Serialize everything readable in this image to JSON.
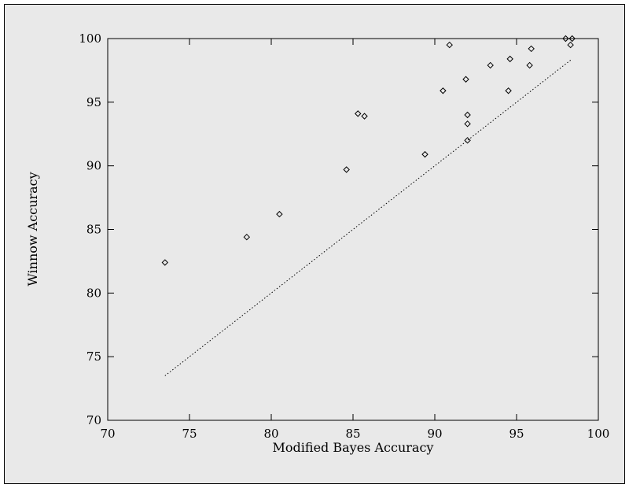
{
  "chart_data": {
    "type": "scatter",
    "xlabel": "Modified Bayes Accuracy",
    "ylabel": "Winnow Accuracy",
    "xlim": [
      70,
      100
    ],
    "ylim": [
      70,
      100
    ],
    "xticks": [
      70,
      75,
      80,
      85,
      90,
      95,
      100
    ],
    "yticks": [
      70,
      75,
      80,
      85,
      90,
      95,
      100
    ],
    "grid": false,
    "legend": "none",
    "colors": {
      "background": "#e9e9e9",
      "marker": "#000000",
      "reference_line": "#000000"
    },
    "series": [
      {
        "marker": "diamond",
        "x": [
          73.5,
          78.5,
          80.5,
          84.6,
          85.3,
          85.7,
          89.4,
          90.5,
          90.9,
          91.9,
          92.0,
          92.0,
          92.0,
          93.4,
          94.5,
          94.6,
          95.8,
          95.9,
          98.0,
          98.3,
          98.4
        ],
        "y": [
          82.4,
          84.4,
          86.2,
          89.7,
          94.1,
          93.9,
          90.9,
          95.9,
          99.5,
          96.8,
          94.0,
          93.3,
          92.0,
          97.9,
          95.9,
          98.4,
          97.9,
          99.2,
          100.0,
          99.5,
          100.0
        ]
      }
    ],
    "reference_line": {
      "style": "dotted",
      "x": [
        73.5,
        98.4
      ],
      "y": [
        73.5,
        98.4
      ]
    }
  }
}
